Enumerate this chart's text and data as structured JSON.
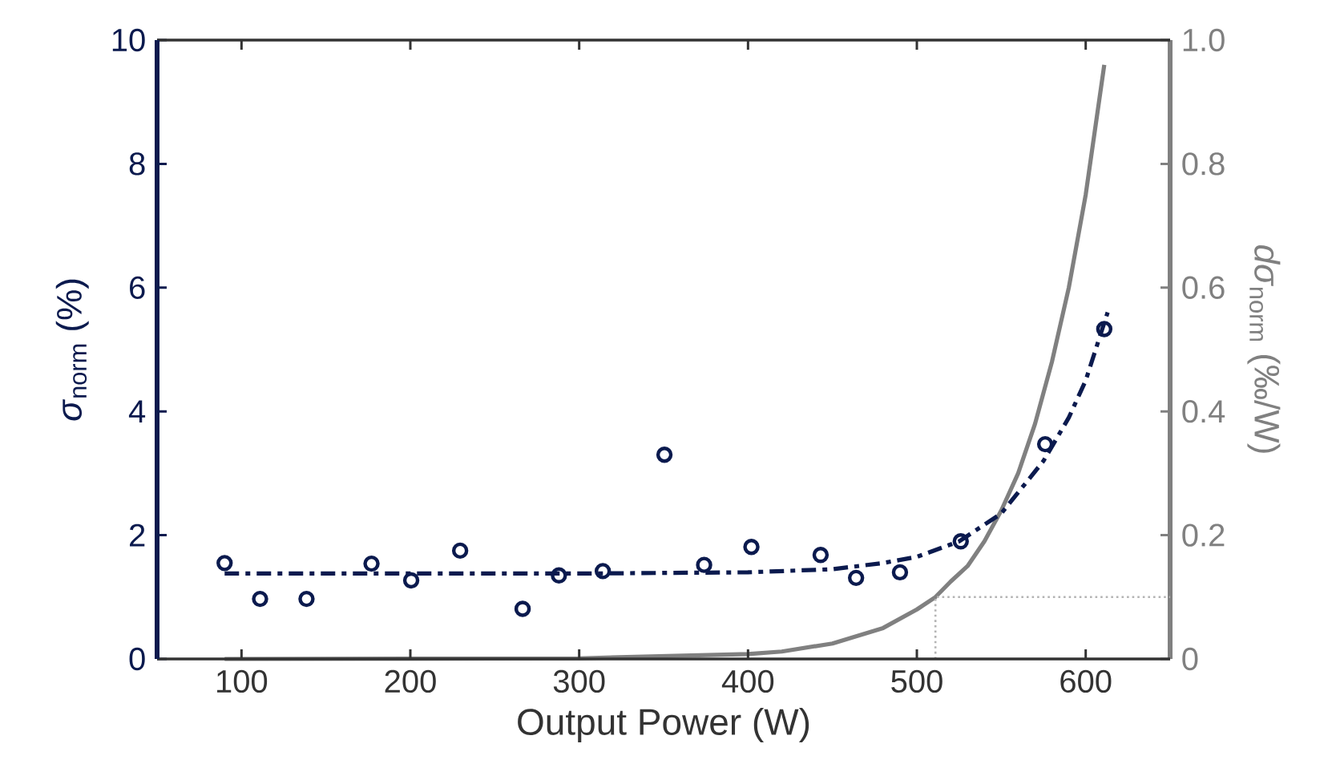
{
  "chart_data": {
    "type": "scatter",
    "xlabel": "Output Power (W)",
    "ylabel": "*σ*$_{norm}$ (%)",
    "y2label": "*dσ*$_{norm}$ (‰/W)",
    "xlim": [
      50,
      650
    ],
    "xticks": [
      100,
      200,
      300,
      400,
      500,
      600
    ],
    "ylim": [
      0,
      10
    ],
    "yticks": [
      0,
      2,
      4,
      6,
      8,
      10
    ],
    "y2lim": [
      0,
      1
    ],
    "y2ticks": [
      0,
      0.2,
      0.4,
      0.6,
      0.8,
      {
        "value": 1,
        "label": "1.0"
      }
    ],
    "series": [
      {
        "color": "#0b1a4e",
        "marker": "circle",
        "x": [
          90,
          111,
          138.5,
          177,
          200.5,
          229.5,
          266.5,
          288,
          314,
          350.5,
          374,
          402,
          443,
          464,
          490,
          526,
          576,
          611
        ],
        "values": [
          1.55,
          0.97,
          0.97,
          1.54,
          1.27,
          1.75,
          0.81,
          1.35,
          1.42,
          3.3,
          1.52,
          1.81,
          1.68,
          1.31,
          1.4,
          1.9,
          3.47,
          5.33
        ]
      },
      {
        "type": "line",
        "color": "#0b1a4e",
        "line_style": "dashdot",
        "x": [
          90,
          300,
          400,
          450,
          480,
          500,
          525,
          550,
          575,
          590,
          600,
          613
        ],
        "values": [
          1.38,
          1.38,
          1.4,
          1.45,
          1.55,
          1.65,
          1.9,
          2.35,
          3.2,
          3.9,
          4.5,
          5.6
        ]
      },
      {
        "type": "line",
        "color": "#808080",
        "line_style": "solid",
        "axis": "y2",
        "x": [
          90,
          300,
          400,
          420,
          450,
          480,
          500,
          511,
          520,
          530,
          540,
          550,
          560,
          570,
          580,
          590,
          600,
          611
        ],
        "values": [
          0,
          0.001,
          0.008,
          0.012,
          0.025,
          0.05,
          0.08,
          0.1,
          0.125,
          0.15,
          0.19,
          0.24,
          0.3,
          0.38,
          0.48,
          0.6,
          0.75,
          0.96
        ]
      },
      {
        "type": "line",
        "color": "#b4b4b4",
        "line_style": "dotted",
        "axis": "y2",
        "x": [
          511,
          511,
          650
        ],
        "values": [
          0,
          0.1,
          0.1
        ]
      }
    ]
  }
}
